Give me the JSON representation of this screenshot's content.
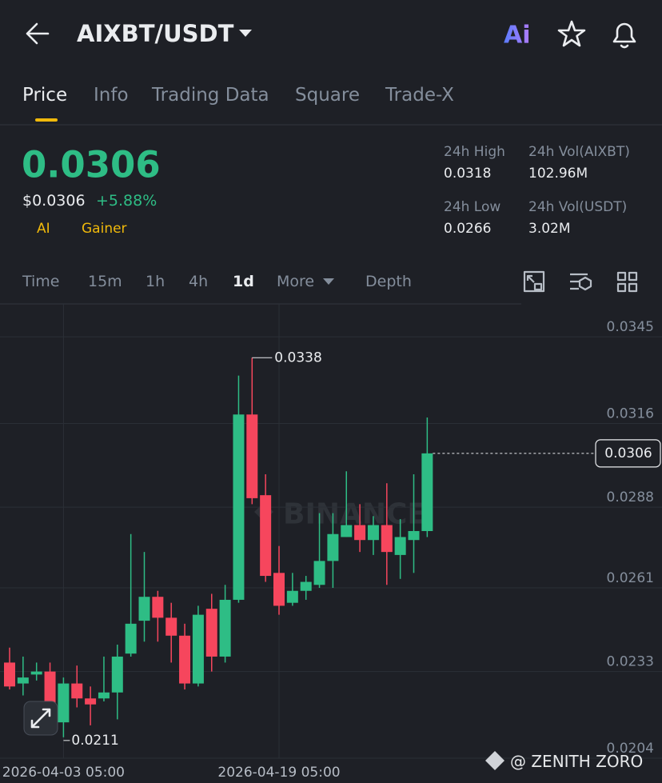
{
  "header": {
    "symbol": "AIXBT/USDT",
    "ai_badge": "Ai"
  },
  "tabs": [
    "Price",
    "Info",
    "Trading Data",
    "Square",
    "Trade-X"
  ],
  "summary": {
    "price": "0.0306",
    "usd_price": "$0.0306",
    "change": "+5.88%",
    "tags": [
      "AI",
      "Gainer"
    ],
    "stats": [
      {
        "label": "24h High",
        "value": "0.0318"
      },
      {
        "label": "24h Vol(AIXBT)",
        "value": "102.96M"
      },
      {
        "label": "24h Low",
        "value": "0.0266"
      },
      {
        "label": "24h Vol(USDT)",
        "value": "3.02M"
      }
    ]
  },
  "intervals": [
    "Time",
    "15m",
    "1h",
    "4h",
    "1d",
    "More",
    "Depth"
  ],
  "chart_data": {
    "type": "candlestick",
    "categories": [
      null,
      null,
      null,
      null,
      "2026-04-03 05:00",
      null,
      null,
      null,
      null,
      null,
      null,
      null,
      null,
      null,
      null,
      null,
      null,
      null,
      null,
      null,
      "2026-04-19 05:00",
      null,
      null,
      null,
      null,
      null,
      null,
      null,
      null,
      null,
      null,
      null
    ],
    "open": [
      0.0236,
      0.0229,
      0.0232,
      0.0233,
      0.0216,
      0.0229,
      0.0224,
      0.0224,
      0.0226,
      0.0239,
      0.025,
      0.0258,
      0.0251,
      0.0245,
      0.0229,
      0.0254,
      0.0238,
      0.0257,
      0.0319,
      0.0292,
      0.0266,
      0.0256,
      0.026,
      0.0262,
      0.027,
      0.0278,
      0.0282,
      0.0277,
      0.0282,
      0.0272,
      0.0277,
      0.028
    ],
    "high": [
      0.0241,
      0.0238,
      0.0236,
      0.0236,
      0.0231,
      0.0235,
      0.0228,
      0.0238,
      0.0242,
      0.0279,
      0.0273,
      0.026,
      0.0256,
      0.0249,
      0.0255,
      0.0259,
      0.0262,
      0.0332,
      0.0338,
      0.0299,
      0.0275,
      0.0266,
      0.0265,
      0.0286,
      0.0286,
      0.03,
      0.0289,
      0.0285,
      0.0296,
      0.0284,
      0.0299,
      0.0318
    ],
    "low": [
      0.0227,
      0.0225,
      0.023,
      0.0217,
      0.0211,
      0.0221,
      0.0215,
      0.0223,
      0.0217,
      0.0238,
      0.0243,
      0.0243,
      0.0236,
      0.0227,
      0.0228,
      0.0233,
      0.0236,
      0.0256,
      0.0289,
      0.0263,
      0.0252,
      0.0255,
      0.0257,
      0.0261,
      0.0261,
      0.0278,
      0.0273,
      0.0272,
      0.0262,
      0.0264,
      0.0266,
      0.0278
    ],
    "close": [
      0.0228,
      0.0231,
      0.0233,
      0.0219,
      0.0229,
      0.0224,
      0.0222,
      0.0226,
      0.0238,
      0.0249,
      0.0258,
      0.0251,
      0.0245,
      0.0229,
      0.0252,
      0.0238,
      0.0257,
      0.0319,
      0.0291,
      0.0265,
      0.0255,
      0.026,
      0.0263,
      0.027,
      0.0279,
      0.0282,
      0.0277,
      0.0282,
      0.0273,
      0.0278,
      0.028,
      0.0306
    ],
    "up_color": "#2ebd85",
    "down_color": "#f6465d",
    "ylim": [
      0.0204,
      0.0356
    ],
    "yticks": [
      0.0345,
      0.0316,
      0.0288,
      0.0261,
      0.0233,
      0.0204
    ],
    "grid": true,
    "watermark": "BINANCE"
  },
  "footer": "@ ZENITH ZORO"
}
